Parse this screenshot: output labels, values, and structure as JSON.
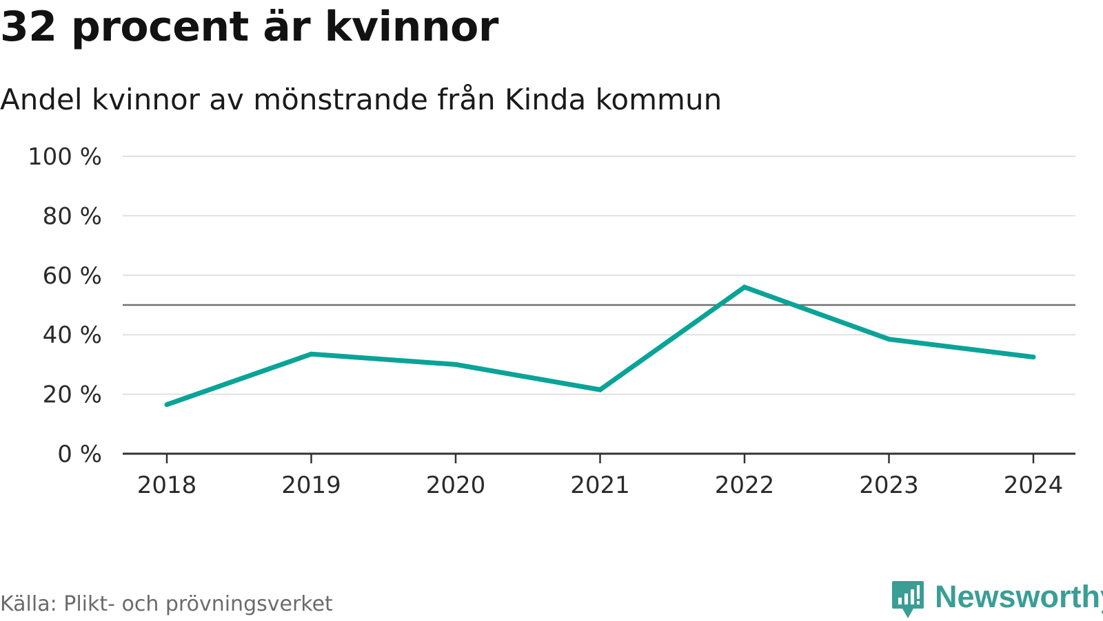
{
  "header": {
    "title": "32 procent är kvinnor",
    "subtitle": "Andel kvinnor av mönstrande från Kinda kommun"
  },
  "footer": {
    "source": "Källa: Plikt- och prövningsverket",
    "brand": "Newsworthy",
    "brand_icon": "newsworthy-logo-icon"
  },
  "colors": {
    "line": "#0aa398",
    "grid": "#e0e0e0",
    "reference": "#707070",
    "axis": "#333333",
    "brand": "#3a9e95"
  },
  "chart_data": {
    "type": "line",
    "title": "32 procent är kvinnor",
    "subtitle": "Andel kvinnor av mönstrande från Kinda kommun",
    "xlabel": "",
    "ylabel": "",
    "categories": [
      "2018",
      "2019",
      "2020",
      "2021",
      "2022",
      "2023",
      "2024"
    ],
    "series": [
      {
        "name": "Andel kvinnor",
        "values": [
          16.5,
          33.5,
          30,
          21.5,
          56,
          38.5,
          32.5
        ]
      }
    ],
    "ylim": [
      0,
      100
    ],
    "yticks": [
      0,
      20,
      40,
      60,
      80,
      100
    ],
    "ytick_labels": [
      "0 %",
      "20 %",
      "40 %",
      "60 %",
      "80 %",
      "100 %"
    ],
    "reference_line": 50,
    "grid": true,
    "legend": "none"
  }
}
